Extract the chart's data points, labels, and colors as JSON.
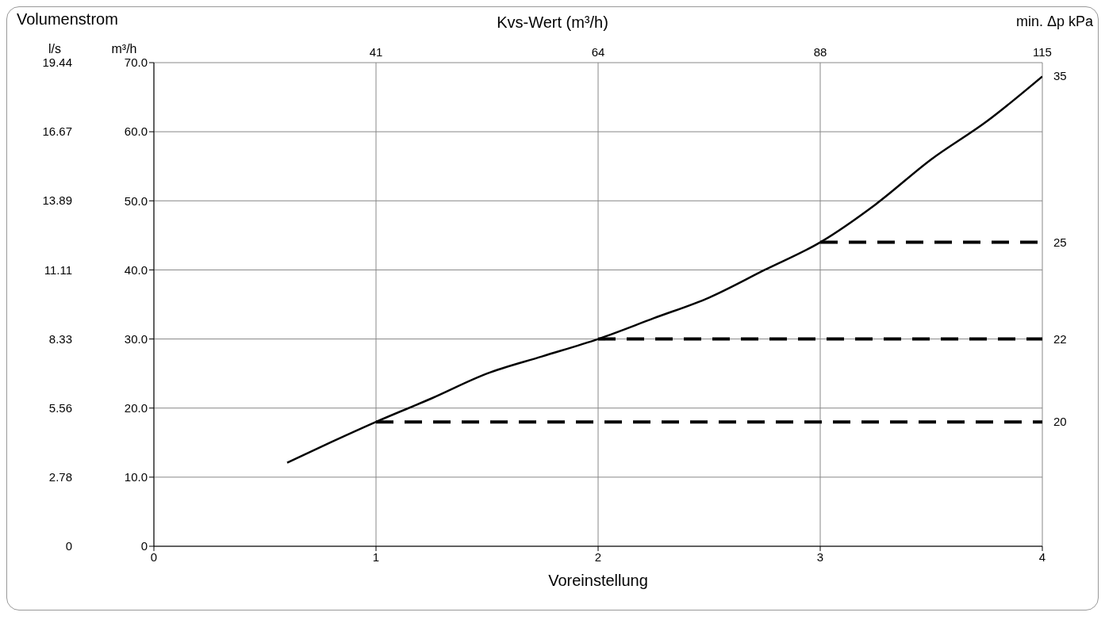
{
  "chart_data": {
    "type": "line",
    "annotations": [
      "Volumenstrom",
      "41",
      "64",
      "88",
      "115",
      "35",
      "20",
      "22",
      "25"
    ],
    "xlabel": "Voreinstellung",
    "ylabel": "m³/h",
    "y2label": "l/s",
    "x2label": "Kvs-Wert (m³/h)",
    "y3label": "min. Δp kPa",
    "xlim": [
      0,
      4
    ],
    "xticks": [
      0,
      1,
      2,
      3,
      4
    ],
    "ylim": [
      0,
      70
    ],
    "yticks": [
      0,
      {
        "value": 10,
        "label": "10.0"
      },
      {
        "value": 20,
        "label": "20.0"
      },
      {
        "value": 30,
        "label": "30.0"
      },
      {
        "value": 40,
        "label": "40.0"
      },
      {
        "value": 50,
        "label": "50.0"
      },
      {
        "value": 60,
        "label": "60.0"
      },
      {
        "value": 70,
        "label": "70.0"
      }
    ],
    "y2lim": [
      0,
      19.44
    ],
    "y2ticks": [
      0,
      2.78,
      5.56,
      8.33,
      11.11,
      13.89,
      16.67,
      19.44
    ],
    "grid": true,
    "marker": "none",
    "series": [
      {
        "color": "#000000",
        "line_style": "solid",
        "x": [
          0.6,
          0.8,
          1,
          1.25,
          1.5,
          1.75,
          2,
          2.25,
          2.5,
          2.75,
          3,
          3.25,
          3.5,
          3.75,
          4
        ],
        "values": [
          12.1,
          15.1,
          18,
          21.4,
          25,
          27.5,
          30,
          33,
          36,
          40,
          44,
          49.5,
          56,
          61.5,
          68
        ]
      },
      {
        "color": "#000000",
        "line_style": "dashed",
        "x": [
          1,
          4
        ],
        "values": [
          18,
          18
        ]
      },
      {
        "color": "#000000",
        "line_style": "dashed",
        "x": [
          2,
          4
        ],
        "values": [
          30,
          30
        ]
      },
      {
        "color": "#000000",
        "line_style": "dashed",
        "x": [
          3,
          4
        ],
        "values": [
          44,
          44
        ]
      }
    ]
  }
}
